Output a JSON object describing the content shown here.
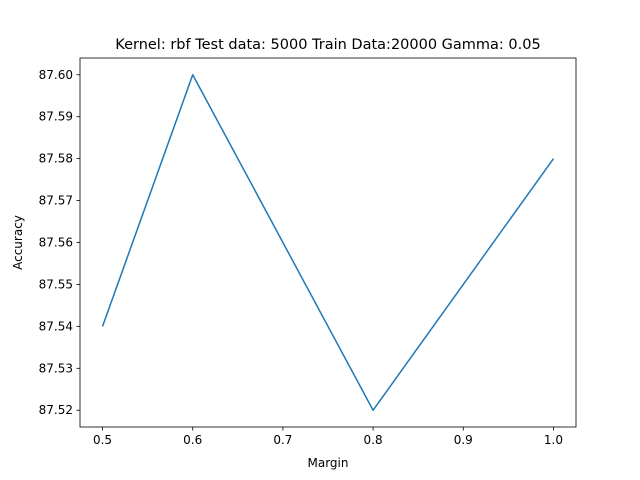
{
  "chart_data": {
    "type": "line",
    "title": "Kernel: rbf Test data: 5000  Train Data:20000 Gamma: 0.05",
    "xlabel": "Margin",
    "ylabel": "Accuracy",
    "x": [
      0.5,
      0.6,
      0.8,
      1.0
    ],
    "series": [
      {
        "values": [
          87.54,
          87.6,
          87.52,
          87.58
        ],
        "color": "#1f77b4"
      }
    ],
    "xlim": [
      0.475,
      1.025
    ],
    "ylim": [
      87.516,
      87.604
    ],
    "xticks": [
      "0.5",
      "0.6",
      "0.7",
      "0.8",
      "0.9",
      "1.0"
    ],
    "yticks": [
      "87.52",
      "87.53",
      "87.54",
      "87.55",
      "87.56",
      "87.57",
      "87.58",
      "87.59",
      "87.60"
    ],
    "grid": false
  }
}
